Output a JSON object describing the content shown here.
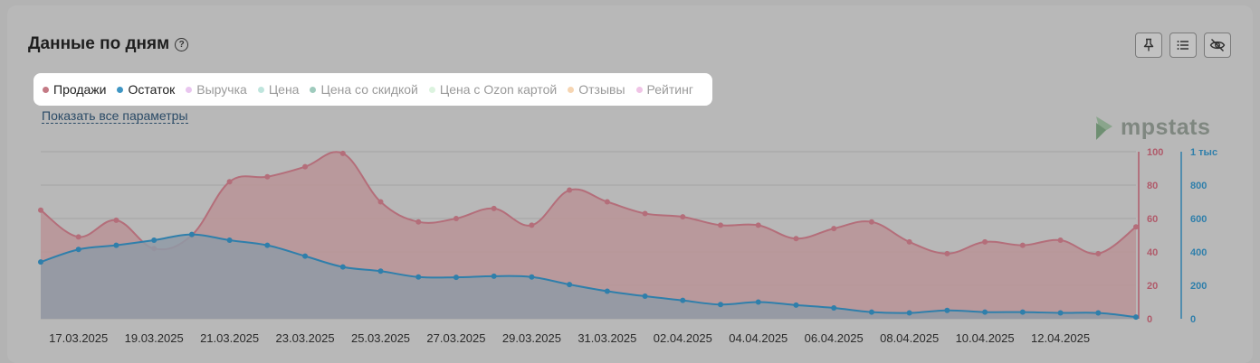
{
  "header": {
    "title": "Данные по дням",
    "help_symbol": "?"
  },
  "legend": [
    {
      "label": "Продажи",
      "color": "#c47a85",
      "active": true
    },
    {
      "label": "Остаток",
      "color": "#3f96c4",
      "active": true
    },
    {
      "label": "Выручка",
      "color": "#e9c6ef",
      "active": false
    },
    {
      "label": "Цена",
      "color": "#bfe5dd",
      "active": false
    },
    {
      "label": "Цена со скидкой",
      "color": "#9fcbbd",
      "active": false
    },
    {
      "label": "Цена с Ozon картой",
      "color": "#dcf3df",
      "active": false
    },
    {
      "label": "Отзывы",
      "color": "#f6d5b2",
      "active": false
    },
    {
      "label": "Рейтинг",
      "color": "#f0c4e6",
      "active": false
    }
  ],
  "show_all_link": "Показать все параметры",
  "logo_text": "mpstats",
  "colors": {
    "sales": "#b46e7a",
    "sales_fill": "#b89396",
    "stock": "#2f7fab",
    "stock_fill": "#8f9aa6",
    "left_axis": "#b05a6a",
    "right_axis": "#2f7fab"
  },
  "chart_data": {
    "type": "area",
    "x": [
      "16.03.2025",
      "17.03.2025",
      "18.03.2025",
      "19.03.2025",
      "20.03.2025",
      "21.03.2025",
      "22.03.2025",
      "23.03.2025",
      "24.03.2025",
      "25.03.2025",
      "26.03.2025",
      "27.03.2025",
      "28.03.2025",
      "29.03.2025",
      "30.03.2025",
      "31.03.2025",
      "01.04.2025",
      "02.04.2025",
      "03.04.2025",
      "04.04.2025",
      "05.04.2025",
      "06.04.2025",
      "07.04.2025",
      "08.04.2025",
      "09.04.2025",
      "10.04.2025",
      "11.04.2025",
      "12.04.2025",
      "13.04.2025",
      "14.04.2025"
    ],
    "x_tick_labels": [
      "17.03.2025",
      "19.03.2025",
      "21.03.2025",
      "23.03.2025",
      "25.03.2025",
      "27.03.2025",
      "29.03.2025",
      "31.03.2025",
      "02.04.2025",
      "04.04.2025",
      "06.04.2025",
      "08.04.2025",
      "10.04.2025",
      "12.04.2025"
    ],
    "series": [
      {
        "name": "Продажи",
        "axis": "left",
        "values": [
          65,
          49,
          59,
          42,
          50,
          82,
          85,
          91,
          99,
          70,
          58,
          60,
          66,
          56,
          77,
          70,
          63,
          61,
          56,
          56,
          48,
          54,
          58,
          46,
          39,
          46,
          44,
          47,
          39,
          55
        ]
      },
      {
        "name": "Остаток",
        "axis": "right",
        "values": [
          340,
          415,
          440,
          470,
          505,
          470,
          440,
          375,
          310,
          285,
          250,
          248,
          255,
          250,
          205,
          165,
          135,
          110,
          85,
          100,
          82,
          65,
          40,
          35,
          50,
          40,
          40,
          35,
          35,
          10
        ]
      }
    ],
    "y_left": {
      "ticks": [
        "0",
        "20",
        "40",
        "60",
        "80",
        "100"
      ],
      "range": [
        0,
        100
      ]
    },
    "y_right": {
      "ticks": [
        "0",
        "200",
        "400",
        "600",
        "800",
        "1 тыс"
      ],
      "range": [
        0,
        1000
      ]
    },
    "grid": true
  }
}
